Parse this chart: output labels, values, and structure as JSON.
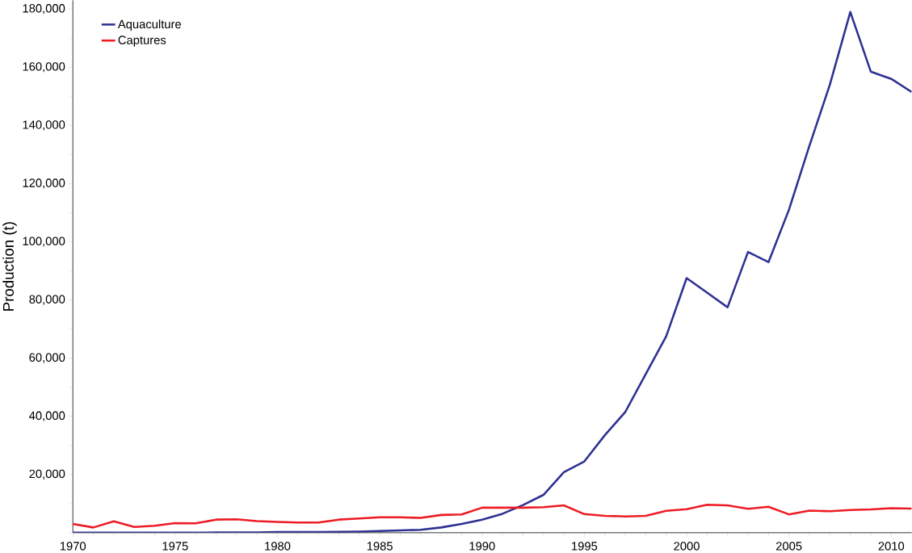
{
  "chart_data": {
    "type": "line",
    "ylabel": "Production (t)",
    "xlim": [
      1970,
      2011
    ],
    "ylim": [
      0,
      183000
    ],
    "x": [
      1970,
      1971,
      1972,
      1973,
      1974,
      1975,
      1976,
      1977,
      1978,
      1979,
      1980,
      1981,
      1982,
      1983,
      1984,
      1985,
      1986,
      1987,
      1988,
      1989,
      1990,
      1991,
      1992,
      1993,
      1994,
      1995,
      1996,
      1997,
      1998,
      1999,
      2000,
      2001,
      2002,
      2003,
      2004,
      2005,
      2006,
      2007,
      2008,
      2009,
      2010,
      2011
    ],
    "xticks": [
      1970,
      1975,
      1980,
      1985,
      1990,
      1995,
      2000,
      2005,
      2010
    ],
    "yticks": [
      {
        "value": 0,
        "label": null
      },
      {
        "value": 20000,
        "label": "20,000"
      },
      {
        "value": 40000,
        "label": "40,000"
      },
      {
        "value": 60000,
        "label": "60,000"
      },
      {
        "value": 80000,
        "label": "80,000"
      },
      {
        "value": 100000,
        "label": "100,000"
      },
      {
        "value": 120000,
        "label": "120,000"
      },
      {
        "value": 140000,
        "label": "140,000"
      },
      {
        "value": 160000,
        "label": "160,000"
      },
      {
        "value": 180000,
        "label": "180,000"
      }
    ],
    "legend": "top left",
    "grid": false,
    "marker": "none",
    "line_style": "solid",
    "series": [
      {
        "name": "Aquaculture",
        "color": "#2e3192",
        "values": [
          0,
          0,
          0,
          0,
          0,
          0,
          0,
          100,
          100,
          100,
          200,
          200,
          200,
          300,
          400,
          600,
          800,
          1000,
          1800,
          3000,
          4500,
          6500,
          9500,
          13000,
          20800,
          24500,
          33500,
          41500,
          54500,
          67500,
          87500,
          82500,
          77500,
          96500,
          93000,
          111000,
          133000,
          154000,
          179000,
          158500,
          156000,
          151500
        ]
      },
      {
        "name": "Captures",
        "color": "#ed1c24",
        "values": [
          3000,
          1800,
          3900,
          2000,
          2400,
          3300,
          3200,
          4500,
          4600,
          4000,
          3700,
          3500,
          3500,
          4500,
          4900,
          5300,
          5300,
          5100,
          6100,
          6300,
          8600,
          8600,
          8600,
          8800,
          9400,
          6400,
          5800,
          5600,
          5800,
          7500,
          8100,
          9600,
          9400,
          8200,
          8900,
          6300,
          7600,
          7400,
          7800,
          8000,
          8400,
          8300
        ]
      }
    ]
  }
}
